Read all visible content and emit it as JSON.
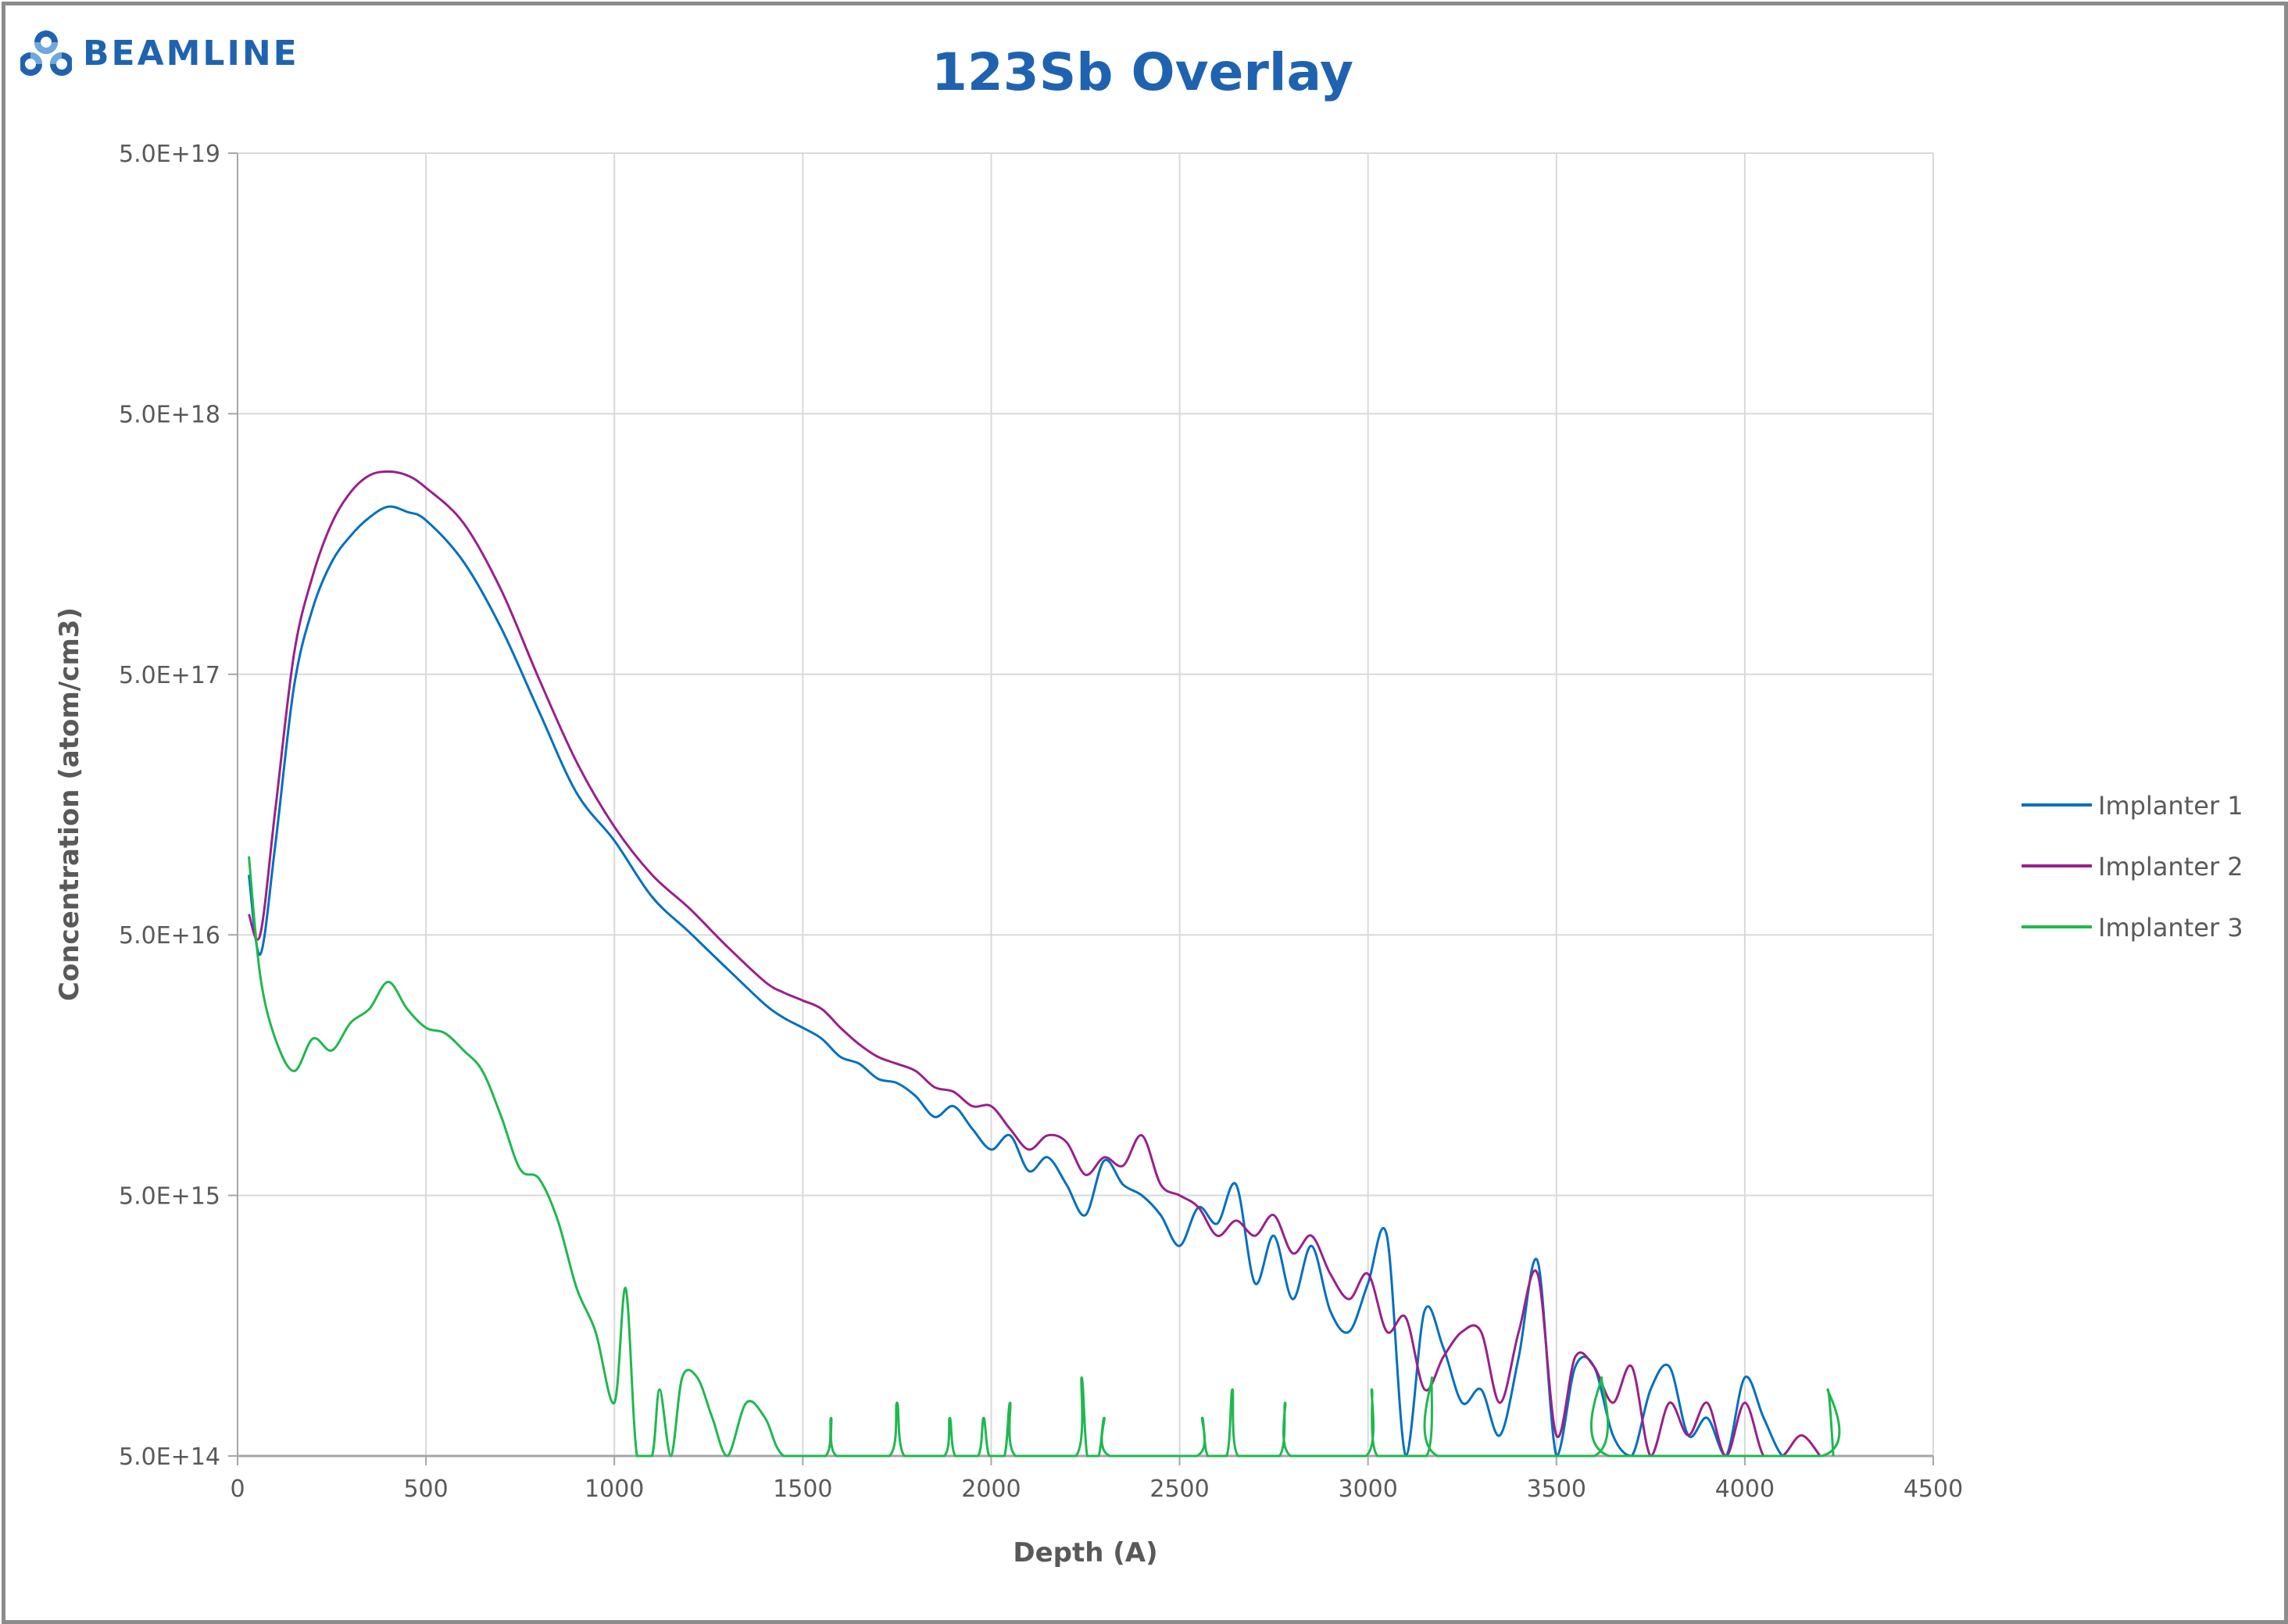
{
  "brand": {
    "name": "BEAMLINE",
    "color": "#1f63b0"
  },
  "chart_data": {
    "type": "line",
    "title": "123Sb Overlay",
    "xlabel": "Depth (A)",
    "ylabel": "Concentration (atom/cm3)",
    "xlim": [
      0,
      4500
    ],
    "ylim": [
      500000000000000.0,
      5e+19
    ],
    "yscale": "log",
    "grid": true,
    "legend": "right",
    "x_ticks": [
      "0",
      "500",
      "1000",
      "1500",
      "2000",
      "2500",
      "3000",
      "3500",
      "4000",
      "4500"
    ],
    "y_ticks": [
      "5.0E+14",
      "5.0E+15",
      "5.0E+16",
      "5.0E+17",
      "5.0E+18",
      "5.0E+19"
    ],
    "series": [
      {
        "name": "Implanter 1",
        "color": "#0070c0",
        "points": [
          [
            30,
            8.5e+16
          ],
          [
            60,
            4.2e+16
          ],
          [
            100,
            1.1e+17
          ],
          [
            150,
            4.5e+17
          ],
          [
            200,
            9e+17
          ],
          [
            250,
            1.35e+18
          ],
          [
            300,
            1.7e+18
          ],
          [
            350,
            2e+18
          ],
          [
            400,
            2.2e+18
          ],
          [
            450,
            2.1e+18
          ],
          [
            500,
            1.95e+18
          ],
          [
            600,
            1.35e+18
          ],
          [
            700,
            7.5e+17
          ],
          [
            800,
            3.6e+17
          ],
          [
            900,
            1.75e+17
          ],
          [
            1000,
            1.15e+17
          ],
          [
            1100,
            7e+16
          ],
          [
            1200,
            5.1e+16
          ],
          [
            1300,
            3.7e+16
          ],
          [
            1400,
            2.7e+16
          ],
          [
            1450,
            2.4e+16
          ],
          [
            1500,
            2.2e+16
          ],
          [
            1550,
            2e+16
          ],
          [
            1600,
            1.7e+16
          ],
          [
            1650,
            1.6e+16
          ],
          [
            1700,
            1.4e+16
          ],
          [
            1750,
            1.35e+16
          ],
          [
            1800,
            1.2e+16
          ],
          [
            1850,
            1e+16
          ],
          [
            1900,
            1.1e+16
          ],
          [
            1950,
            9000000000000000.0
          ],
          [
            2000,
            7500000000000000.0
          ],
          [
            2050,
            8500000000000000.0
          ],
          [
            2100,
            6200000000000000.0
          ],
          [
            2150,
            7000000000000000.0
          ],
          [
            2200,
            5500000000000000.0
          ],
          [
            2250,
            4200000000000000.0
          ],
          [
            2300,
            6800000000000000.0
          ],
          [
            2350,
            5500000000000000.0
          ],
          [
            2400,
            5000000000000000.0
          ],
          [
            2450,
            4200000000000000.0
          ],
          [
            2500,
            3200000000000000.0
          ],
          [
            2550,
            4500000000000000.0
          ],
          [
            2600,
            3900000000000000.0
          ],
          [
            2650,
            5500000000000000.0
          ],
          [
            2700,
            2300000000000000.0
          ],
          [
            2750,
            3500000000000000.0
          ],
          [
            2800,
            2000000000000000.0
          ],
          [
            2850,
            3200000000000000.0
          ],
          [
            2900,
            1800000000000000.0
          ],
          [
            2950,
            1500000000000000.0
          ],
          [
            3000,
            2300000000000000.0
          ],
          [
            3050,
            3500000000000000.0
          ],
          [
            3100,
            500000000000000.0
          ],
          [
            3150,
            1800000000000000.0
          ],
          [
            3200,
            1300000000000000.0
          ],
          [
            3250,
            800000000000000.0
          ],
          [
            3300,
            900000000000000.0
          ],
          [
            3350,
            600000000000000.0
          ],
          [
            3400,
            1200000000000000.0
          ],
          [
            3450,
            2800000000000000.0
          ],
          [
            3500,
            500000000000000.0
          ],
          [
            3550,
            1100000000000000.0
          ],
          [
            3600,
            1100000000000000.0
          ],
          [
            3650,
            600000000000000.0
          ],
          [
            3700,
            500000000000000.0
          ],
          [
            3750,
            900000000000000.0
          ],
          [
            3800,
            1100000000000000.0
          ],
          [
            3850,
            600000000000000.0
          ],
          [
            3900,
            700000000000000.0
          ],
          [
            3950,
            500000000000000.0
          ],
          [
            4000,
            1000000000000000.0
          ],
          [
            4050,
            700000000000000.0
          ],
          [
            4100,
            500000000000000.0
          ],
          [
            4150,
            500000000000000.0
          ],
          [
            4200,
            500000000000000.0
          ]
        ]
      },
      {
        "name": "Implanter 2",
        "color": "#9b1f8c",
        "points": [
          [
            30,
            6e+16
          ],
          [
            60,
            5e+16
          ],
          [
            100,
            1.5e+17
          ],
          [
            150,
            6e+17
          ],
          [
            200,
            1.2e+18
          ],
          [
            250,
            1.9e+18
          ],
          [
            300,
            2.5e+18
          ],
          [
            350,
            2.9e+18
          ],
          [
            400,
            3e+18
          ],
          [
            450,
            2.9e+18
          ],
          [
            500,
            2.6e+18
          ],
          [
            600,
            1.9e+18
          ],
          [
            700,
            1.05e+18
          ],
          [
            800,
            4.8e+17
          ],
          [
            900,
            2.3e+17
          ],
          [
            1000,
            1.3e+17
          ],
          [
            1100,
            8.5e+16
          ],
          [
            1200,
            6.3e+16
          ],
          [
            1300,
            4.5e+16
          ],
          [
            1400,
            3.3e+16
          ],
          [
            1450,
            3e+16
          ],
          [
            1500,
            2.8e+16
          ],
          [
            1550,
            2.6e+16
          ],
          [
            1600,
            2.2e+16
          ],
          [
            1650,
            1.9e+16
          ],
          [
            1700,
            1.7e+16
          ],
          [
            1750,
            1.6e+16
          ],
          [
            1800,
            1.5e+16
          ],
          [
            1850,
            1.3e+16
          ],
          [
            1900,
            1.25e+16
          ],
          [
            1950,
            1.1e+16
          ],
          [
            2000,
            1.1e+16
          ],
          [
            2050,
            9000000000000000.0
          ],
          [
            2100,
            7500000000000000.0
          ],
          [
            2150,
            8500000000000000.0
          ],
          [
            2200,
            8000000000000000.0
          ],
          [
            2250,
            6000000000000000.0
          ],
          [
            2300,
            7000000000000000.0
          ],
          [
            2350,
            6500000000000000.0
          ],
          [
            2400,
            8500000000000000.0
          ],
          [
            2450,
            5500000000000000.0
          ],
          [
            2500,
            5000000000000000.0
          ],
          [
            2550,
            4500000000000000.0
          ],
          [
            2600,
            3500000000000000.0
          ],
          [
            2650,
            4000000000000000.0
          ],
          [
            2700,
            3500000000000000.0
          ],
          [
            2750,
            4200000000000000.0
          ],
          [
            2800,
            3000000000000000.0
          ],
          [
            2850,
            3500000000000000.0
          ],
          [
            2900,
            2500000000000000.0
          ],
          [
            2950,
            2000000000000000.0
          ],
          [
            3000,
            2500000000000000.0
          ],
          [
            3050,
            1500000000000000.0
          ],
          [
            3100,
            1700000000000000.0
          ],
          [
            3150,
            900000000000000.0
          ],
          [
            3200,
            1200000000000000.0
          ],
          [
            3250,
            1500000000000000.0
          ],
          [
            3300,
            1500000000000000.0
          ],
          [
            3350,
            800000000000000.0
          ],
          [
            3400,
            1500000000000000.0
          ],
          [
            3450,
            2500000000000000.0
          ],
          [
            3500,
            600000000000000.0
          ],
          [
            3550,
            1200000000000000.0
          ],
          [
            3600,
            1100000000000000.0
          ],
          [
            3650,
            800000000000000.0
          ],
          [
            3700,
            1100000000000000.0
          ],
          [
            3750,
            500000000000000.0
          ],
          [
            3800,
            800000000000000.0
          ],
          [
            3850,
            600000000000000.0
          ],
          [
            3900,
            800000000000000.0
          ],
          [
            3950,
            500000000000000.0
          ],
          [
            4000,
            800000000000000.0
          ],
          [
            4050,
            500000000000000.0
          ],
          [
            4100,
            500000000000000.0
          ],
          [
            4150,
            600000000000000.0
          ],
          [
            4200,
            500000000000000.0
          ]
        ]
      },
      {
        "name": "Implanter 3",
        "color": "#1fb84f",
        "points": [
          [
            30,
            1e+17
          ],
          [
            60,
            3.5e+16
          ],
          [
            100,
            2e+16
          ],
          [
            150,
            1.5e+16
          ],
          [
            200,
            2e+16
          ],
          [
            250,
            1.8e+16
          ],
          [
            300,
            2.3e+16
          ],
          [
            350,
            2.6e+16
          ],
          [
            400,
            3.3e+16
          ],
          [
            450,
            2.6e+16
          ],
          [
            500,
            2.2e+16
          ],
          [
            550,
            2.1e+16
          ],
          [
            600,
            1.8e+16
          ],
          [
            650,
            1.5e+16
          ],
          [
            700,
            1e+16
          ],
          [
            750,
            6300000000000000.0
          ],
          [
            800,
            5800000000000000.0
          ],
          [
            850,
            4000000000000000.0
          ],
          [
            900,
            2200000000000000.0
          ],
          [
            950,
            1500000000000000.0
          ],
          [
            1000,
            800000000000000.0
          ],
          [
            1030,
            2200000000000000.0
          ],
          [
            1060,
            500000000000000.0
          ],
          [
            1100,
            500000000000000.0
          ],
          [
            1120,
            900000000000000.0
          ],
          [
            1150,
            500000000000000.0
          ],
          [
            1180,
            1000000000000000.0
          ],
          [
            1220,
            1000000000000000.0
          ],
          [
            1260,
            700000000000000.0
          ],
          [
            1300,
            500000000000000.0
          ],
          [
            1350,
            800000000000000.0
          ],
          [
            1400,
            700000000000000.0
          ],
          [
            1450,
            500000000000000.0
          ],
          [
            1560,
            500000000000000.0
          ],
          [
            1575,
            700000000000000.0
          ],
          [
            1590,
            500000000000000.0
          ],
          [
            1730,
            500000000000000.0
          ],
          [
            1750,
            800000000000000.0
          ],
          [
            1770,
            500000000000000.0
          ],
          [
            1875,
            500000000000000.0
          ],
          [
            1890,
            700000000000000.0
          ],
          [
            1905,
            500000000000000.0
          ],
          [
            1965,
            500000000000000.0
          ],
          [
            1980,
            700000000000000.0
          ],
          [
            1995,
            500000000000000.0
          ],
          [
            2035,
            500000000000000.0
          ],
          [
            2050,
            800000000000000.0
          ],
          [
            2065,
            500000000000000.0
          ],
          [
            2225,
            500000000000000.0
          ],
          [
            2240,
            1000000000000000.0
          ],
          [
            2255,
            500000000000000.0
          ],
          [
            2285,
            500000000000000.0
          ],
          [
            2300,
            700000000000000.0
          ],
          [
            2315,
            500000000000000.0
          ],
          [
            2545,
            500000000000000.0
          ],
          [
            2560,
            700000000000000.0
          ],
          [
            2575,
            500000000000000.0
          ],
          [
            2625,
            500000000000000.0
          ],
          [
            2640,
            900000000000000.0
          ],
          [
            2655,
            500000000000000.0
          ],
          [
            2765,
            500000000000000.0
          ],
          [
            2780,
            800000000000000.0
          ],
          [
            2795,
            500000000000000.0
          ],
          [
            2995,
            500000000000000.0
          ],
          [
            3010,
            900000000000000.0
          ],
          [
            3025,
            500000000000000.0
          ],
          [
            3155,
            500000000000000.0
          ],
          [
            3170,
            1000000000000000.0
          ],
          [
            3185,
            500000000000000.0
          ],
          [
            3600,
            500000000000000.0
          ],
          [
            3620,
            1000000000000000.0
          ],
          [
            3640,
            500000000000000.0
          ],
          [
            4205,
            500000000000000.0
          ],
          [
            4220,
            900000000000000.0
          ],
          [
            4235,
            500000000000000.0
          ]
        ]
      }
    ]
  }
}
